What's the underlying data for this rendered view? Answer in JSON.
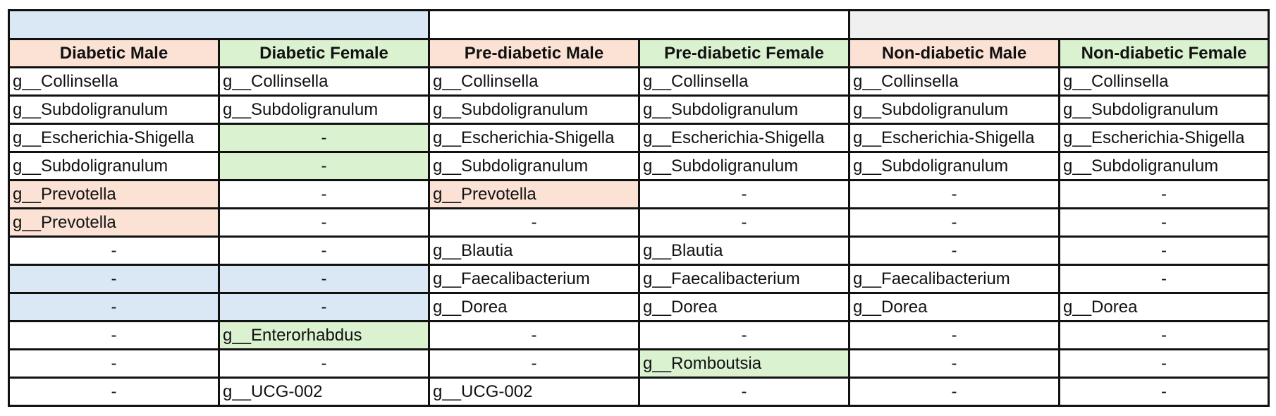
{
  "palette": {
    "blue": "#dae8f6",
    "purple": "#f1ceef",
    "grey": "#f0f0f0",
    "peach": "#fbe2d5",
    "green": "#daf2d0",
    "white": "#ffffff"
  },
  "group_bands": [
    {
      "label": "",
      "color": "blue"
    },
    {
      "label": "",
      "color": "purple"
    },
    {
      "label": "",
      "color": "grey"
    }
  ],
  "headers": [
    {
      "label": "Diabetic Male",
      "color": "peach"
    },
    {
      "label": "Diabetic Female",
      "color": "green"
    },
    {
      "label": "Pre-diabetic Male",
      "color": "peach"
    },
    {
      "label": "Pre-diabetic Female",
      "color": "green"
    },
    {
      "label": "Non-diabetic Male",
      "color": "peach"
    },
    {
      "label": "Non-diabetic Female",
      "color": "green"
    }
  ],
  "rows": [
    [
      {
        "text": "g__Collinsella",
        "color": "white"
      },
      {
        "text": "g__Collinsella",
        "color": "white"
      },
      {
        "text": "g__Collinsella",
        "color": "white"
      },
      {
        "text": "g__Collinsella",
        "color": "white"
      },
      {
        "text": "g__Collinsella",
        "color": "white"
      },
      {
        "text": "g__Collinsella",
        "color": "white"
      }
    ],
    [
      {
        "text": "g__Subdoligranulum",
        "color": "white"
      },
      {
        "text": "g__Subdoligranulum",
        "color": "white"
      },
      {
        "text": "g__Subdoligranulum",
        "color": "white"
      },
      {
        "text": "g__Subdoligranulum",
        "color": "white"
      },
      {
        "text": "g__Subdoligranulum",
        "color": "white"
      },
      {
        "text": "g__Subdoligranulum",
        "color": "white"
      }
    ],
    [
      {
        "text": "g__Escherichia-Shigella",
        "color": "white"
      },
      {
        "text": "-",
        "color": "green"
      },
      {
        "text": "g__Escherichia-Shigella",
        "color": "white"
      },
      {
        "text": "g__Escherichia-Shigella",
        "color": "white"
      },
      {
        "text": "g__Escherichia-Shigella",
        "color": "white"
      },
      {
        "text": "g__Escherichia-Shigella",
        "color": "white"
      }
    ],
    [
      {
        "text": "g__Subdoligranulum",
        "color": "white"
      },
      {
        "text": "-",
        "color": "green"
      },
      {
        "text": "g__Subdoligranulum",
        "color": "white"
      },
      {
        "text": "g__Subdoligranulum",
        "color": "white"
      },
      {
        "text": "g__Subdoligranulum",
        "color": "white"
      },
      {
        "text": "g__Subdoligranulum",
        "color": "white"
      }
    ],
    [
      {
        "text": "g__Prevotella",
        "color": "peach"
      },
      {
        "text": "-",
        "color": "white"
      },
      {
        "text": "g__Prevotella",
        "color": "peach"
      },
      {
        "text": "-",
        "color": "white"
      },
      {
        "text": "-",
        "color": "white"
      },
      {
        "text": "-",
        "color": "white"
      }
    ],
    [
      {
        "text": "g__Prevotella",
        "color": "peach"
      },
      {
        "text": "-",
        "color": "white"
      },
      {
        "text": "-",
        "color": "white"
      },
      {
        "text": "-",
        "color": "white"
      },
      {
        "text": "-",
        "color": "white"
      },
      {
        "text": "-",
        "color": "white"
      }
    ],
    [
      {
        "text": "-",
        "color": "white"
      },
      {
        "text": "-",
        "color": "white"
      },
      {
        "text": "g__Blautia",
        "color": "purple"
      },
      {
        "text": "g__Blautia",
        "color": "purple"
      },
      {
        "text": "-",
        "color": "white"
      },
      {
        "text": "-",
        "color": "white"
      }
    ],
    [
      {
        "text": "-",
        "color": "blue"
      },
      {
        "text": "-",
        "color": "blue"
      },
      {
        "text": "g__Faecalibacterium",
        "color": "white"
      },
      {
        "text": "g__Faecalibacterium",
        "color": "white"
      },
      {
        "text": "g__Faecalibacterium",
        "color": "white"
      },
      {
        "text": "-",
        "color": "white"
      }
    ],
    [
      {
        "text": "-",
        "color": "blue"
      },
      {
        "text": "-",
        "color": "blue"
      },
      {
        "text": "g__Dorea",
        "color": "white"
      },
      {
        "text": "g__Dorea",
        "color": "white"
      },
      {
        "text": "g__Dorea",
        "color": "white"
      },
      {
        "text": "g__Dorea",
        "color": "white"
      }
    ],
    [
      {
        "text": "-",
        "color": "white"
      },
      {
        "text": "g__Enterorhabdus",
        "color": "green"
      },
      {
        "text": "-",
        "color": "white"
      },
      {
        "text": "-",
        "color": "white"
      },
      {
        "text": "-",
        "color": "white"
      },
      {
        "text": "-",
        "color": "white"
      }
    ],
    [
      {
        "text": "-",
        "color": "white"
      },
      {
        "text": "-",
        "color": "white"
      },
      {
        "text": "-",
        "color": "white"
      },
      {
        "text": "g__Romboutsia",
        "color": "green"
      },
      {
        "text": "-",
        "color": "white"
      },
      {
        "text": "-",
        "color": "white"
      }
    ],
    [
      {
        "text": "-",
        "color": "white"
      },
      {
        "text": "g__UCG-002",
        "color": "white"
      },
      {
        "text": "g__UCG-002",
        "color": "white"
      },
      {
        "text": "-",
        "color": "white"
      },
      {
        "text": "-",
        "color": "white"
      },
      {
        "text": "-",
        "color": "white"
      }
    ]
  ]
}
